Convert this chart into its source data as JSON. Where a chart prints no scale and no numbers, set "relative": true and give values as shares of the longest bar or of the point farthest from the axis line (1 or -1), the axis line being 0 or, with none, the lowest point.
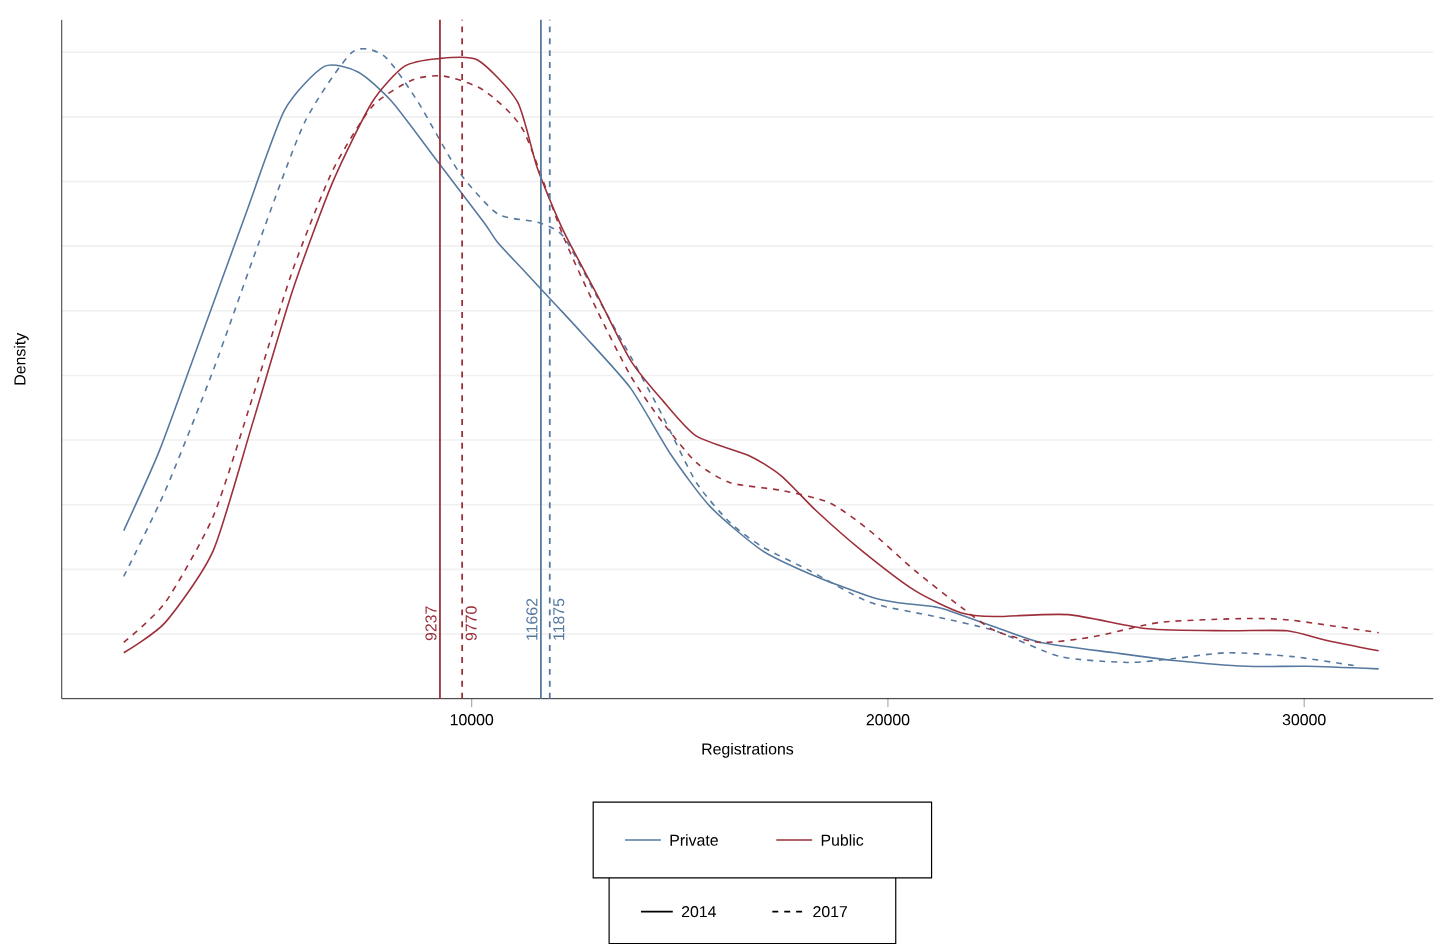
{
  "chart_data": {
    "type": "line",
    "xlabel": "Registrations",
    "ylabel": "Density",
    "relative": true,
    "xlim": [
      150,
      33100
    ],
    "xticks": [
      10000,
      20000,
      30000
    ],
    "grid": "y",
    "legend": "bottom",
    "annotations": [
      "2014",
      "2017"
    ],
    "series": [
      {
        "name": "Private",
        "color": "#56799f",
        "line_style": "solid",
        "x": [
          1640,
          2500,
          3450,
          4550,
          5500,
          6460,
          7280,
          8090,
          9190,
          10290,
          10620,
          11240,
          12050,
          12680,
          13820,
          14780,
          15730,
          16980,
          18270,
          19560,
          20180,
          21130,
          21470,
          22570,
          23670,
          25430,
          26870,
          28630,
          30070,
          31790
        ],
        "values": [
          0.26,
          0.384,
          0.551,
          0.746,
          0.91,
          0.978,
          0.969,
          0.923,
          0.83,
          0.737,
          0.706,
          0.663,
          0.607,
          0.563,
          0.48,
          0.378,
          0.297,
          0.229,
          0.189,
          0.158,
          0.149,
          0.142,
          0.136,
          0.111,
          0.087,
          0.071,
          0.059,
          0.05,
          0.05,
          0.046
        ]
      },
      {
        "color": "#56799f",
        "line_style": "dashed",
        "x": [
          1640,
          2640,
          3790,
          4890,
          5990,
          7130,
          7900,
          8710,
          9670,
          10620,
          11580,
          12200,
          13010,
          13820,
          14590,
          15400,
          16210,
          16980,
          18120,
          19560,
          21130,
          22570,
          24140,
          25770,
          26870,
          28160,
          29730,
          31310
        ],
        "values": [
          0.189,
          0.322,
          0.508,
          0.706,
          0.892,
          1,
          0.994,
          0.923,
          0.817,
          0.75,
          0.737,
          0.715,
          0.622,
          0.529,
          0.437,
          0.334,
          0.272,
          0.235,
          0.198,
          0.149,
          0.127,
          0.105,
          0.065,
          0.056,
          0.062,
          0.071,
          0.065,
          0.05
        ]
      },
      {
        "name": "Public",
        "color": "#9c2f3a",
        "line_style": "solid",
        "x": [
          1640,
          2640,
          3790,
          4740,
          5700,
          6660,
          7610,
          8380,
          9190,
          10140,
          11100,
          11580,
          12200,
          13010,
          13820,
          14590,
          15400,
          16690,
          17450,
          18270,
          19370,
          20650,
          21750,
          22570,
          24330,
          26250,
          28160,
          29590,
          30550,
          31790
        ],
        "values": [
          0.071,
          0.118,
          0.229,
          0.427,
          0.632,
          0.799,
          0.923,
          0.978,
          0.99,
          0.988,
          0.923,
          0.82,
          0.724,
          0.625,
          0.523,
          0.461,
          0.406,
          0.375,
          0.344,
          0.291,
          0.229,
          0.167,
          0.133,
          0.127,
          0.13,
          0.108,
          0.105,
          0.105,
          0.09,
          0.074
        ]
      },
      {
        "color": "#9c2f3a",
        "line_style": "dashed",
        "x": [
          1640,
          2640,
          3790,
          4740,
          5700,
          6660,
          7610,
          8570,
          9330,
          10290,
          11240,
          12200,
          13010,
          13820,
          14590,
          15400,
          16210,
          17450,
          18600,
          19560,
          20650,
          21750,
          22570,
          23670,
          24960,
          26540,
          28630,
          29730,
          31790
        ],
        "values": [
          0.087,
          0.149,
          0.282,
          0.467,
          0.663,
          0.817,
          0.916,
          0.957,
          0.963,
          0.941,
          0.879,
          0.715,
          0.601,
          0.499,
          0.427,
          0.365,
          0.334,
          0.322,
          0.303,
          0.26,
          0.198,
          0.142,
          0.105,
          0.087,
          0.096,
          0.118,
          0.124,
          0.121,
          0.102
        ]
      }
    ],
    "ref_lines": [
      {
        "axis": "x",
        "value": 9237,
        "label": "9237",
        "color": "#9c2f3a",
        "line_style": "solid"
      },
      {
        "axis": "x",
        "value": 9770,
        "label": "9770",
        "color": "#9c2f3a",
        "line_style": "dashed"
      },
      {
        "axis": "x",
        "value": 11662,
        "label": "11662",
        "color": "#56799f",
        "line_style": "solid"
      },
      {
        "axis": "x",
        "value": 11875,
        "label": "11875",
        "color": "#56799f",
        "line_style": "dashed"
      }
    ]
  }
}
